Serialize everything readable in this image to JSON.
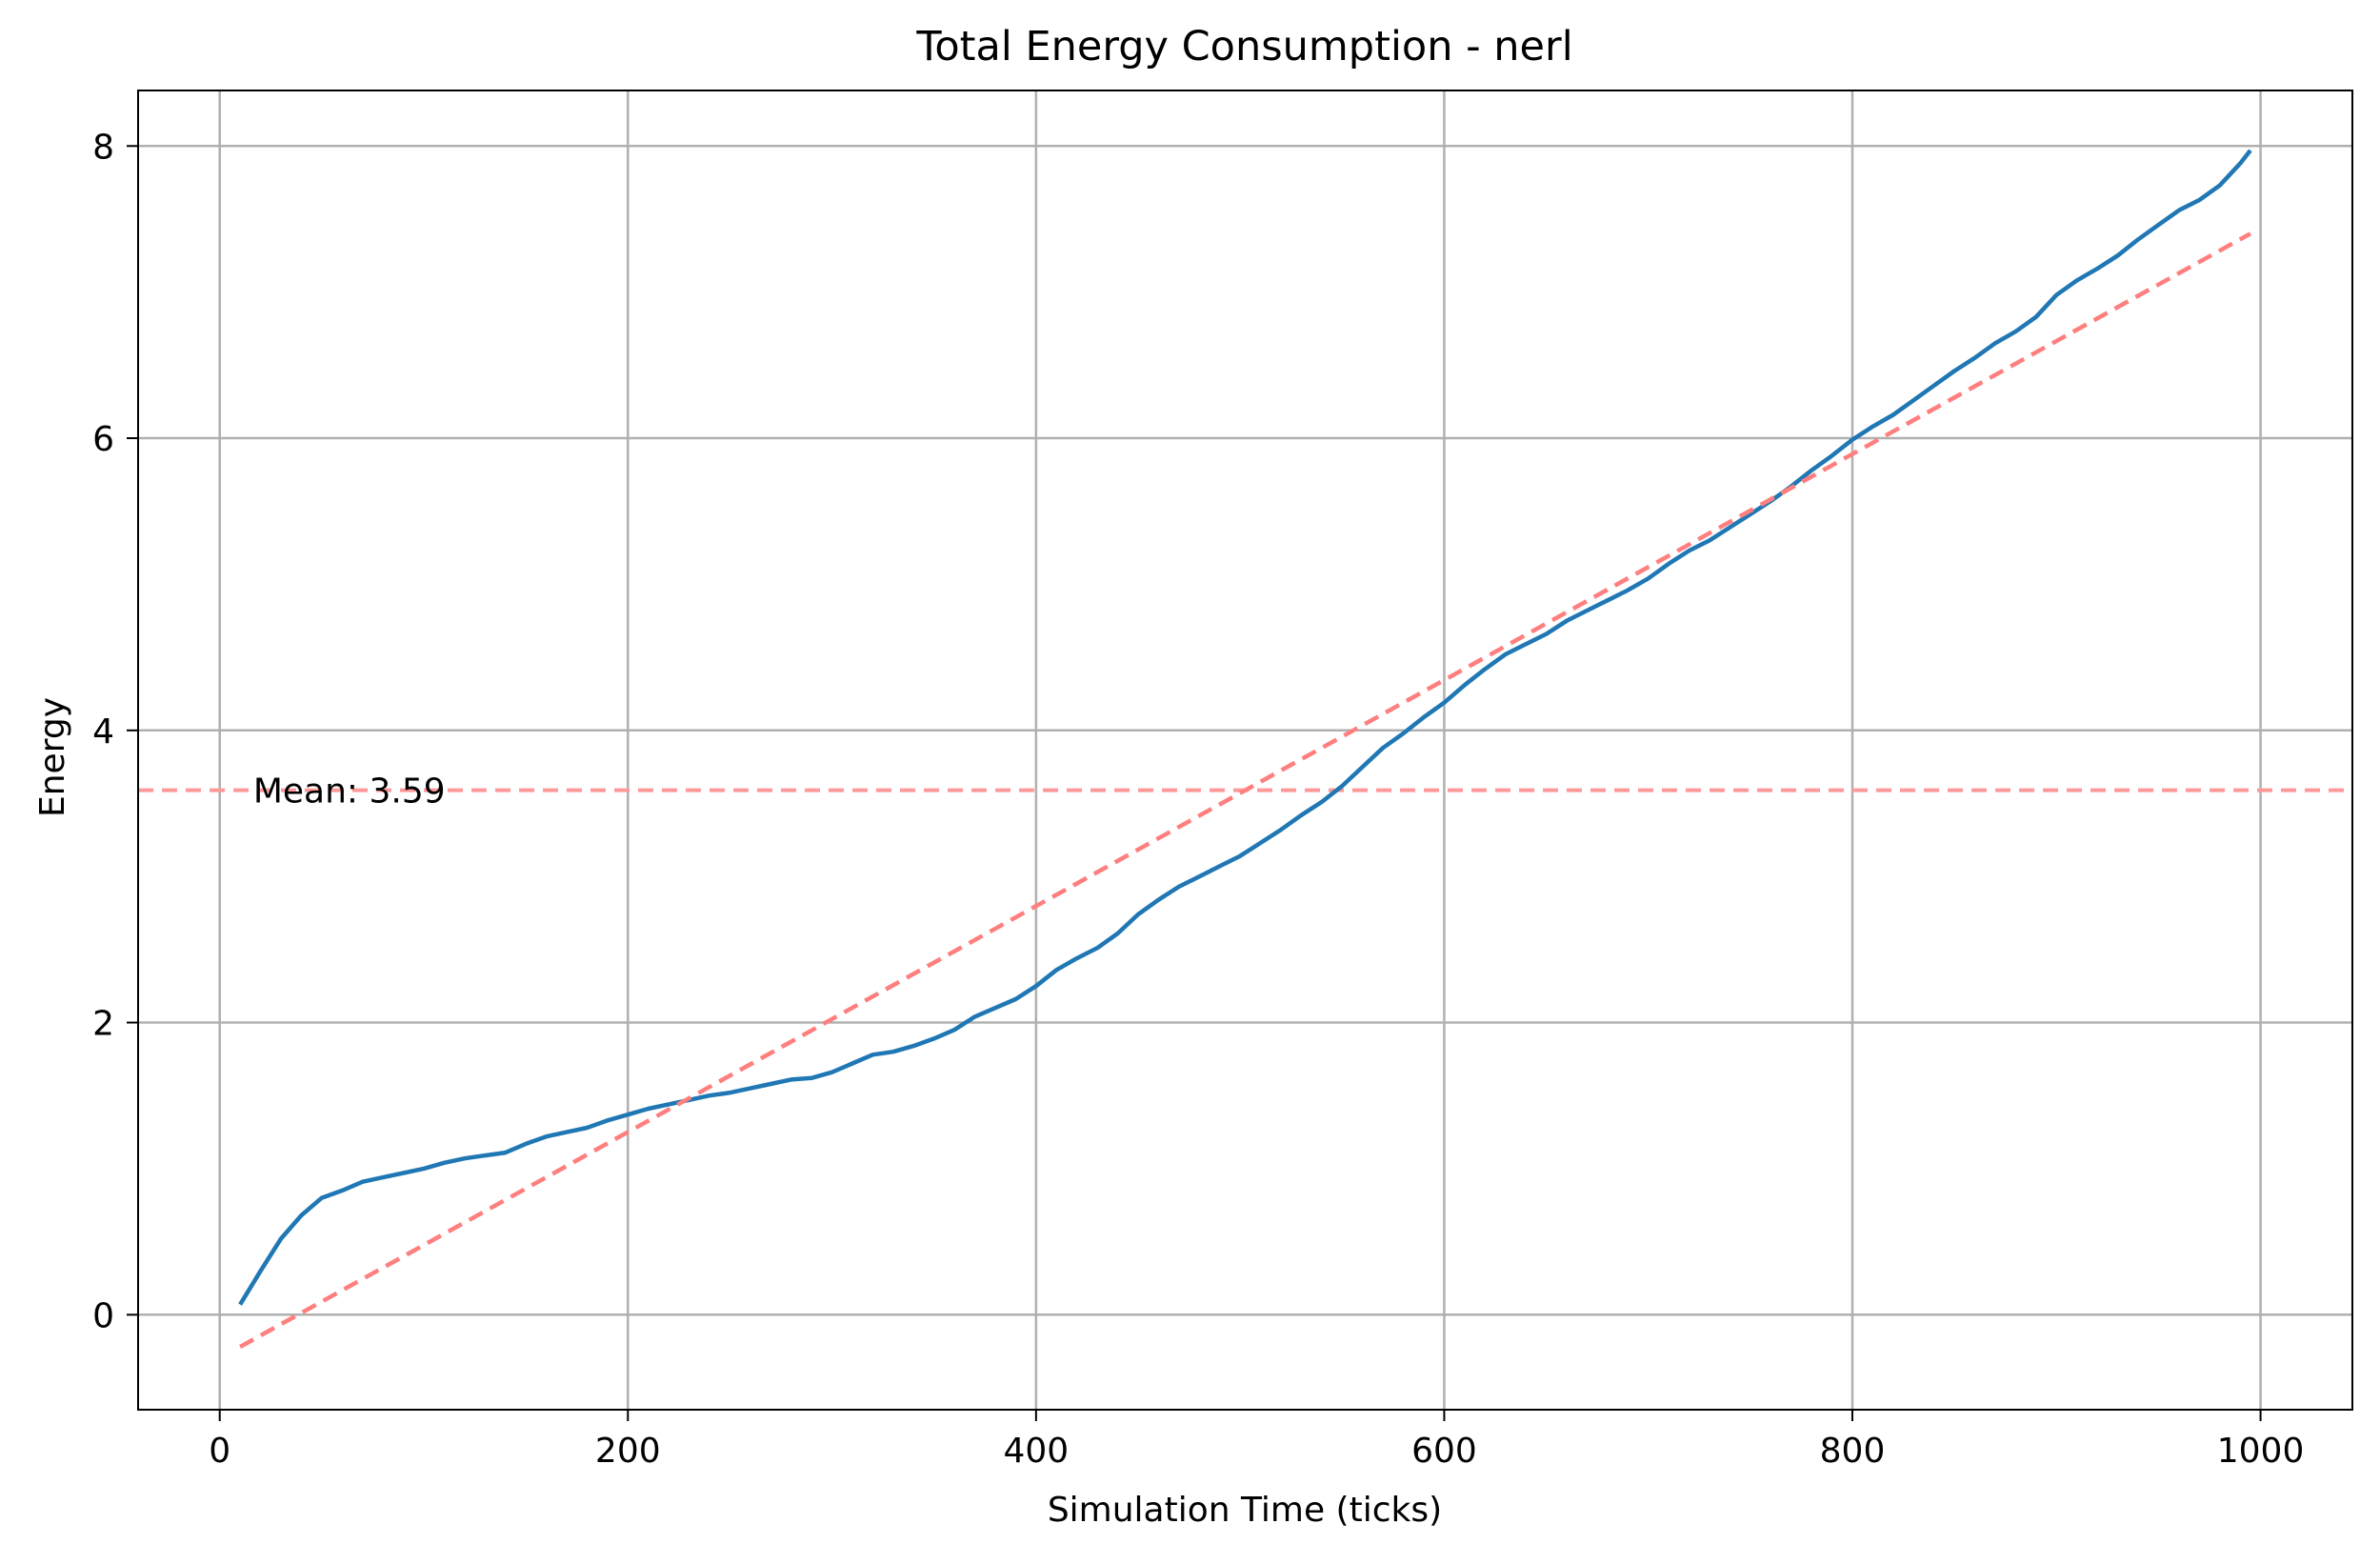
{
  "chart_data": {
    "type": "line",
    "title": "Total Energy Consumption - nerl",
    "xlabel": "Simulation Time (ticks)",
    "ylabel": "Energy",
    "xlim": [
      -40,
      1045
    ],
    "ylim": [
      -0.65,
      8.38
    ],
    "xticks": [
      0,
      200,
      400,
      600,
      800,
      1000
    ],
    "yticks": [
      0,
      2,
      4,
      6,
      8
    ],
    "xtick_labels": [
      "0",
      "200",
      "400",
      "600",
      "800",
      "1000"
    ],
    "ytick_labels": [
      "0",
      "2",
      "4",
      "6",
      "8"
    ],
    "grid": true,
    "series": [
      {
        "name": "",
        "color": "#1f77b4",
        "style": "solid",
        "x": [
          10,
          20,
          30,
          40,
          50,
          60,
          70,
          80,
          90,
          100,
          110,
          120,
          130,
          140,
          150,
          160,
          170,
          180,
          190,
          200,
          210,
          220,
          230,
          240,
          250,
          260,
          270,
          280,
          290,
          300,
          310,
          320,
          330,
          340,
          350,
          360,
          370,
          380,
          390,
          400,
          410,
          420,
          430,
          440,
          450,
          460,
          470,
          480,
          490,
          500,
          510,
          520,
          530,
          540,
          550,
          560,
          570,
          580,
          590,
          600,
          610,
          620,
          630,
          640,
          650,
          660,
          670,
          680,
          690,
          700,
          710,
          720,
          730,
          740,
          750,
          760,
          770,
          780,
          790,
          800,
          810,
          820,
          830,
          840,
          850,
          860,
          870,
          880,
          890,
          900,
          910,
          920,
          930,
          940,
          950,
          960,
          970,
          980,
          990,
          995
        ],
        "values": [
          0.07,
          0.3,
          0.52,
          0.68,
          0.8,
          0.85,
          0.91,
          0.94,
          0.97,
          1.0,
          1.04,
          1.07,
          1.09,
          1.11,
          1.17,
          1.22,
          1.25,
          1.28,
          1.33,
          1.37,
          1.41,
          1.44,
          1.47,
          1.5,
          1.52,
          1.55,
          1.58,
          1.61,
          1.62,
          1.66,
          1.72,
          1.78,
          1.8,
          1.84,
          1.89,
          1.95,
          2.04,
          2.1,
          2.16,
          2.25,
          2.36,
          2.44,
          2.51,
          2.61,
          2.74,
          2.84,
          2.93,
          3.0,
          3.07,
          3.14,
          3.23,
          3.32,
          3.42,
          3.51,
          3.62,
          3.75,
          3.88,
          3.98,
          4.09,
          4.19,
          4.31,
          4.42,
          4.52,
          4.59,
          4.66,
          4.75,
          4.82,
          4.89,
          4.96,
          5.04,
          5.14,
          5.23,
          5.3,
          5.39,
          5.48,
          5.57,
          5.67,
          5.78,
          5.88,
          5.99,
          6.08,
          6.16,
          6.26,
          6.36,
          6.46,
          6.55,
          6.65,
          6.73,
          6.83,
          6.98,
          7.08,
          7.16,
          7.25,
          7.36,
          7.46,
          7.56,
          7.63,
          7.73,
          7.88,
          7.97
        ]
      },
      {
        "name": "",
        "color": "#ff7f7f",
        "style": "dashed",
        "x": [
          10,
          995
        ],
        "values": [
          -0.22,
          7.4
        ]
      }
    ],
    "reference_lines": [
      {
        "orientation": "horizontal",
        "y": 3.59,
        "color": "#ff9999",
        "style": "dashed",
        "label": "Mean: 3.59"
      }
    ],
    "annotations": [
      {
        "text": "Mean: 3.59",
        "x": 15,
        "y": 3.59
      }
    ]
  }
}
